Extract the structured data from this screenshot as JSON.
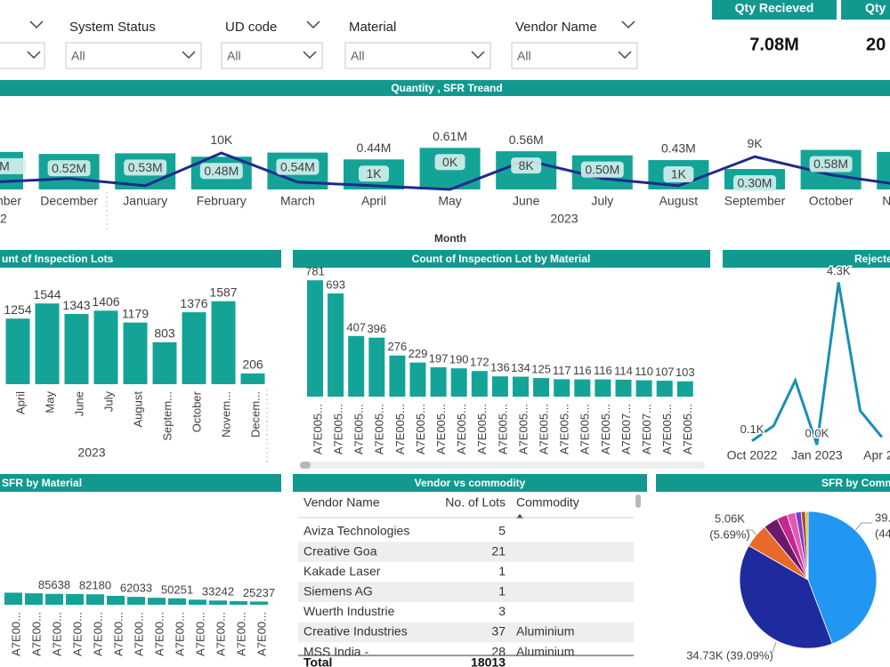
{
  "filters": [
    {
      "label": "System Status",
      "value": "All"
    },
    {
      "label": "UD code",
      "value": "All"
    },
    {
      "label": "Material",
      "value": "All"
    },
    {
      "label": "Vendor Name",
      "value": "All"
    }
  ],
  "cards": [
    {
      "title": "Qty Recieved",
      "value": "7.08M"
    },
    {
      "title": "Qty",
      "value": "20"
    }
  ],
  "chart_data": [
    {
      "type": "combo",
      "title": "Quantity , SFR Treand",
      "categories": [
        "mber",
        "December",
        "January",
        "February",
        "March",
        "April",
        "May",
        "June",
        "July",
        "August",
        "September",
        "October",
        "N"
      ],
      "year_labels": [
        "2",
        "2023"
      ],
      "xlabel": "Month",
      "ylim": [
        0,
        1.2
      ],
      "y2lim": [
        0,
        10.5
      ],
      "series": [
        {
          "type": "bar",
          "color": "#13a497",
          "values": [
            0.55,
            0.52,
            0.53,
            0.48,
            0.54,
            0.44,
            0.61,
            0.56,
            0.5,
            0.43,
            0.3,
            0.58,
            0.55
          ],
          "value_labels": [
            "M",
            "0.52M",
            "0.53M",
            "0.48M",
            "0.54M",
            "0.44M",
            "0.61M",
            "0.56M",
            "0.50M",
            "0.43M",
            "0.30M",
            "0.58M",
            null
          ]
        },
        {
          "type": "line",
          "axis": "y2",
          "color": "#1f2a8c",
          "values": [
            2,
            3,
            1,
            10,
            2,
            1,
            0,
            8,
            3,
            1,
            9,
            4,
            1
          ],
          "value_labels": [
            null,
            null,
            null,
            "10K",
            null,
            "1K",
            "0K",
            "8K",
            null,
            "1K",
            "9K",
            null,
            null
          ]
        }
      ]
    },
    {
      "type": "bar",
      "title": "unt of Inspection Lots",
      "color": "#13a497",
      "categories": [
        "April",
        "May",
        "June",
        "July",
        "August",
        "Septem...",
        "October",
        "Novem...",
        "Decem..."
      ],
      "values": [
        1254,
        1544,
        1343,
        1406,
        1179,
        803,
        1376,
        1587,
        206
      ],
      "year_label": "2023",
      "ylim": [
        0,
        1650
      ]
    },
    {
      "type": "bar",
      "title": "Count of Inspection Lot by Material",
      "color": "#13a497",
      "categories": [
        "A7E005...",
        "A7E005...",
        "A7E005...",
        "A7E005...",
        "A7E005...",
        "A7E005...",
        "A7E005...",
        "A7E005...",
        "A7E005...",
        "A7E005...",
        "A7E005...",
        "A7E005...",
        "A7E005...",
        "A7E005...",
        "A7E005...",
        "A7E007...",
        "A7E007...",
        "A7E005...",
        "A7E005..."
      ],
      "values": [
        781,
        693,
        407,
        396,
        276,
        229,
        197,
        190,
        172,
        136,
        134,
        125,
        117,
        116,
        116,
        114,
        110,
        107,
        103
      ],
      "ylim": [
        0,
        800
      ]
    },
    {
      "type": "line",
      "title": "Rejecte",
      "color": "#1a8fb5",
      "categories": [
        "Oct 2022",
        null,
        null,
        "Jan 2023",
        null,
        null,
        "Apr 20"
      ],
      "values": [
        0.1,
        0.5,
        1.7,
        0.0,
        4.3,
        0.9,
        0.2
      ],
      "value_labels": [
        "0.1K",
        null,
        null,
        "0.0K",
        "4.3K",
        null,
        null
      ],
      "ylim": [
        0,
        4.5
      ]
    },
    {
      "type": "bar",
      "title": "SFR by Material",
      "color": "#13a497",
      "categories": [
        "A7E00...",
        "A7E00...",
        "A7E00...",
        "A7E00...",
        "A7E00...",
        "A7E00...",
        "A7E00...",
        "A7E00...",
        "A7E00...",
        "A7E00...",
        "A7E00...",
        "A7E00...",
        "A7E00..."
      ],
      "values": [
        95000,
        90000,
        85638,
        84000,
        82180,
        70000,
        62033,
        55000,
        50251,
        40000,
        33242,
        28000,
        25237
      ],
      "value_labels": [
        null,
        null,
        "85638",
        null,
        "82180",
        null,
        "62033",
        null,
        "50251",
        null,
        "33242",
        null,
        "25237"
      ],
      "ylim": [
        0,
        700000
      ]
    },
    {
      "type": "pie",
      "title": "SFR by Comm",
      "values": [
        39.3,
        34.73,
        5.06,
        3.1,
        2.2,
        1.8,
        1.2,
        0.9,
        0.55
      ],
      "colors": [
        "#2196f3",
        "#1f2a9e",
        "#e8692a",
        "#6b1a6b",
        "#c7268f",
        "#e05bb5",
        "#7b3fc4",
        "#a0522d",
        "#e0b020"
      ],
      "value_labels": [
        "39.",
        "34.73K (39.09%)",
        "5.06K",
        null,
        null,
        null,
        null,
        null,
        null
      ],
      "percent_labels": [
        "(44",
        null,
        "(5.69%)",
        null,
        null,
        null,
        null,
        null,
        null
      ]
    }
  ],
  "table": {
    "title": "Vendor vs commodity",
    "columns": [
      "Vendor Name",
      "No. of Lots",
      "Commodity"
    ],
    "rows": [
      [
        "Aviza Technologies",
        5,
        null
      ],
      [
        "Creative Goa",
        21,
        null
      ],
      [
        "Kakade Laser",
        1,
        null
      ],
      [
        "Siemens AG",
        1,
        null
      ],
      [
        "Wuerth Industrie",
        3,
        null
      ],
      [
        "Creative Industries",
        37,
        "Aluminium"
      ],
      [
        "MSS India -",
        28,
        "Aluminium"
      ]
    ],
    "total": [
      "Total",
      18013
    ]
  }
}
